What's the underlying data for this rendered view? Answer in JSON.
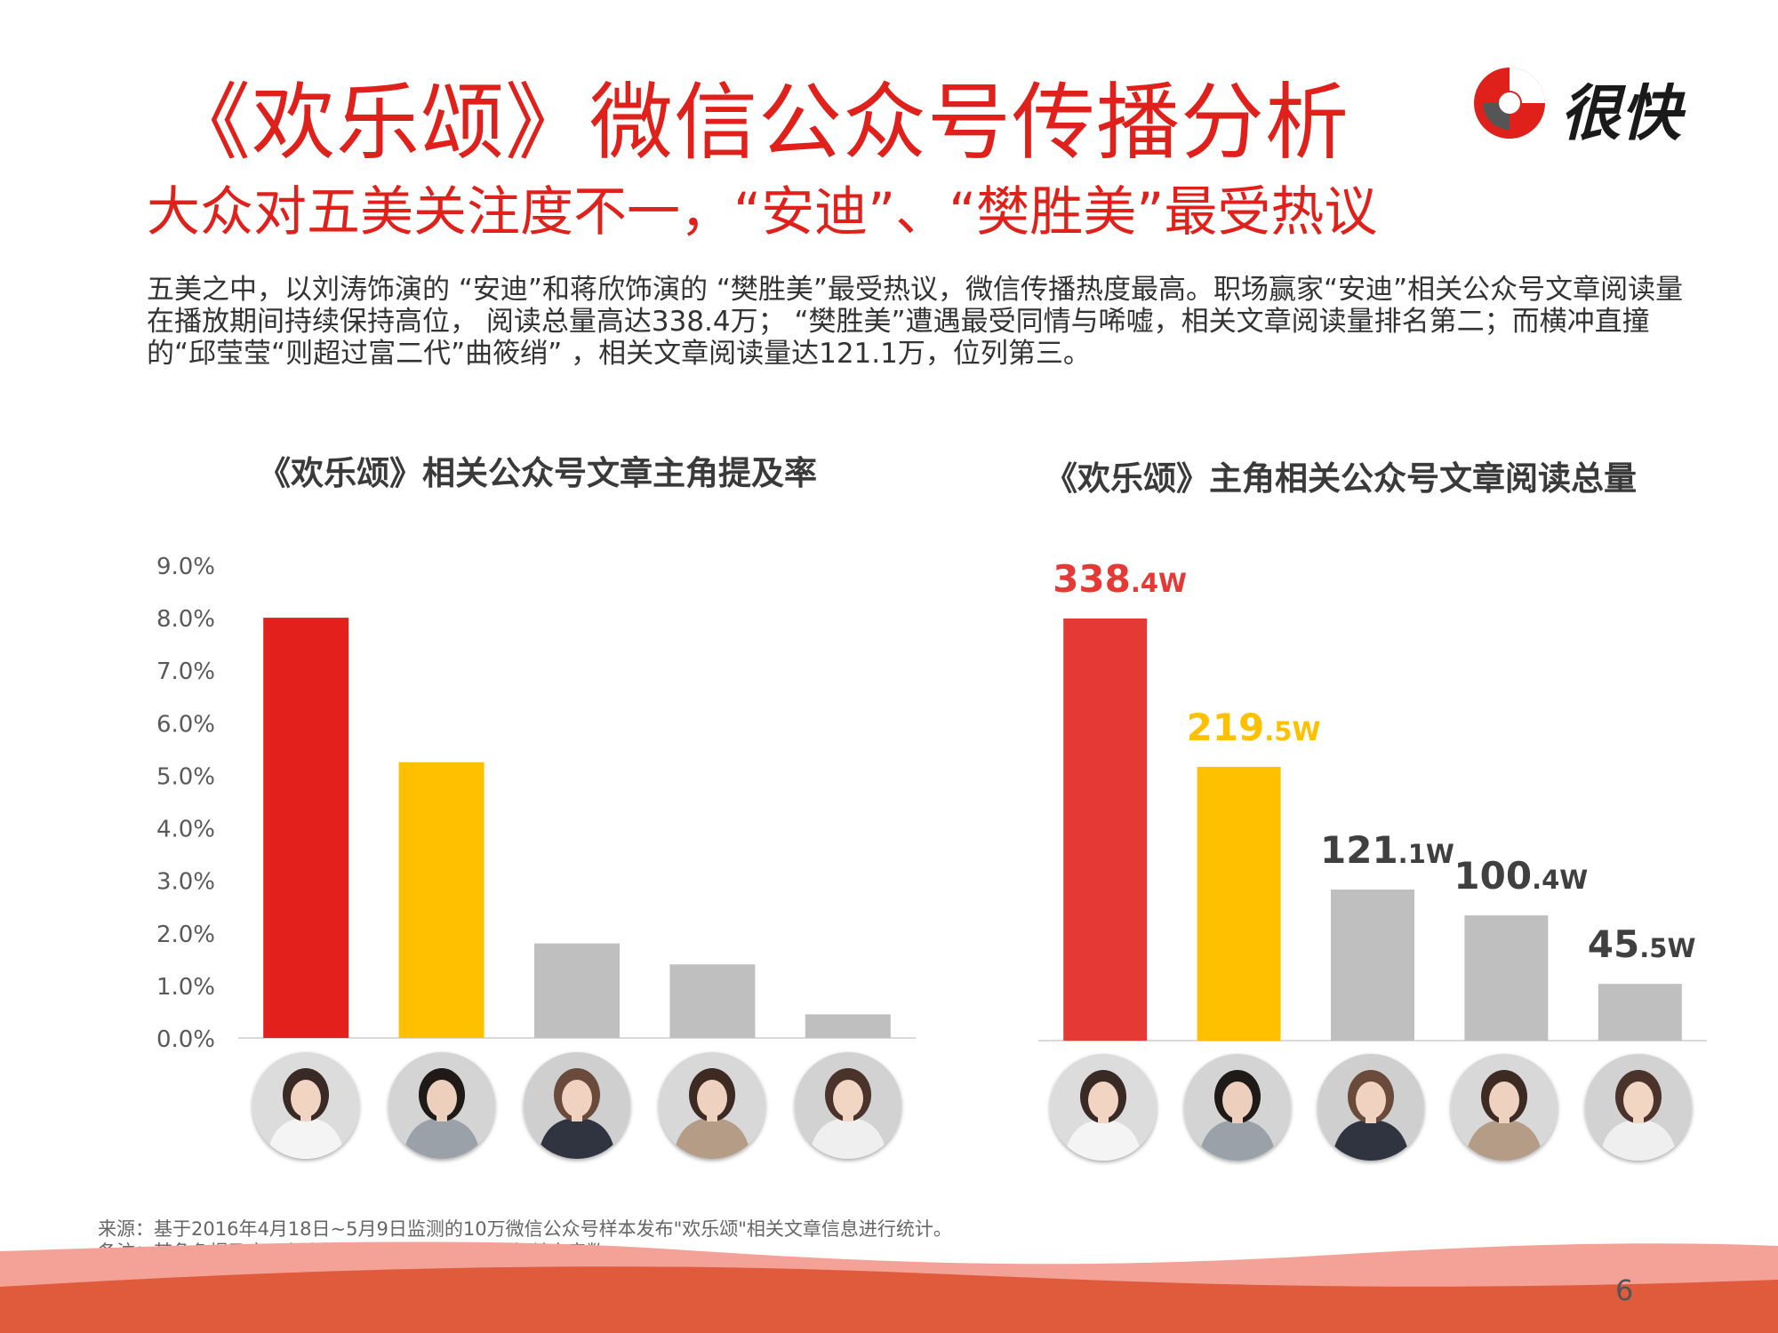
{
  "header": {
    "title": "《欢乐颂》微信公众号传播分析",
    "subtitle": "大众对五美关注度不一，“安迪”、“樊胜美”最受热议",
    "logo_text": "很快"
  },
  "intro": "五美之中，以刘涛饰演的 “安迪”和蒋欣饰演的 “樊胜美”最受热议，微信传播热度最高。职场赢家“安迪”相关公众号文章阅读量在播放期间持续保持高位， 阅读总量高达338.4万； “樊胜美”遭遇最受同情与唏嘘，相关文章阅读量排名第二；而横冲直撞的“邱莹莹“则超过富二代”曲筱绡” ，相关文章阅读量达121.1万，位列第三。",
  "chart_data": [
    {
      "type": "bar",
      "title": "《欢乐颂》相关公众号文章主角提及率",
      "values": [
        8.0,
        5.25,
        1.8,
        1.4,
        0.45
      ],
      "ylim": [
        0,
        9
      ],
      "yticks": [
        "0.0%",
        "1.0%",
        "2.0%",
        "3.0%",
        "4.0%",
        "5.0%",
        "6.0%",
        "7.0%",
        "8.0%",
        "9.0%"
      ],
      "colors": [
        "#e3201b",
        "#ffc000",
        "#bfbfbf",
        "#bfbfbf",
        "#bfbfbf"
      ],
      "grid": false,
      "legend": "none"
    },
    {
      "type": "bar",
      "title": "《欢乐颂》主角相关公众号文章阅读总量",
      "values": [
        338.4,
        219.5,
        121.1,
        100.4,
        45.5
      ],
      "labels_main": [
        "338",
        "219",
        "121",
        "100",
        "45"
      ],
      "labels_sub": [
        ".4W",
        ".5W",
        ".1W",
        ".4W",
        ".5W"
      ],
      "colors": [
        "#e53935",
        "#ffc000",
        "#bfbfbf",
        "#bfbfbf",
        "#bfbfbf"
      ],
      "label_colors": [
        "#e53935",
        "#ffc000",
        "#404040",
        "#404040",
        "#404040"
      ],
      "ylim": [
        0,
        400
      ],
      "grid": false,
      "legend": "none"
    }
  ],
  "avatar_colors": {
    "1": [
      "#dcdcdc",
      "#f4f4f4",
      "#3a2a26",
      "#f1d4c2"
    ],
    "2": [
      "#d4d4d4",
      "#9aa1a8",
      "#1f1a18",
      "#ecd0bd"
    ],
    "3": [
      "#cfcfcf",
      "#2f3440",
      "#6a4a3a",
      "#f0d2c0"
    ],
    "4": [
      "#d8d8d8",
      "#b59c86",
      "#3d2b23",
      "#efd1bf"
    ],
    "5": [
      "#d2d2d2",
      "#efefef",
      "#4a332b",
      "#f2d6c4"
    ]
  },
  "footer": {
    "source": "来源：基于2016年4月18日~5月9日监测的10万微信公众号样本发布\"欢乐颂\"相关文章信息进行统计。",
    "note": "备注：某角色提及率=含该角色文章数/欢乐颂所有相关文章数",
    "page": "6"
  },
  "colors": {
    "accent": "#e0211b",
    "wave_light": "#f4a198",
    "wave_dark": "#e05a3c"
  }
}
